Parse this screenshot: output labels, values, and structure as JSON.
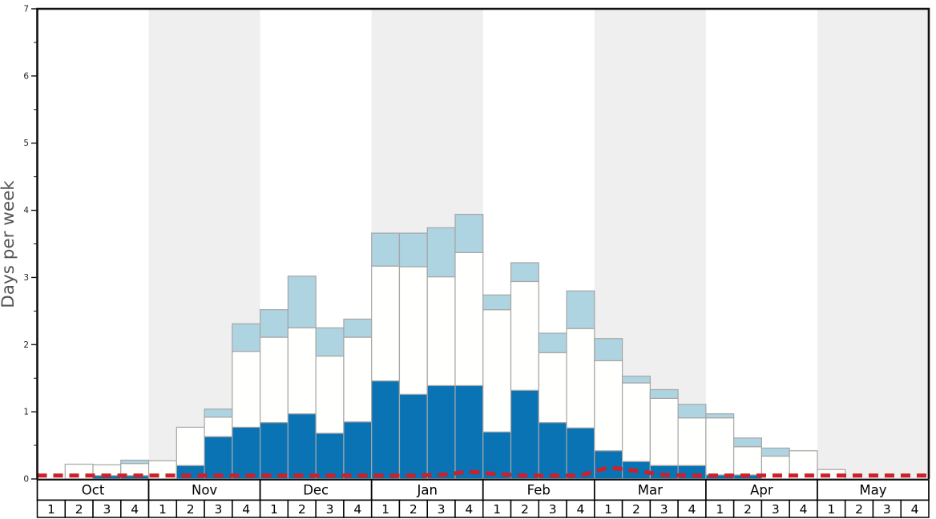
{
  "chart_data": {
    "type": "bar",
    "title": "",
    "ylabel": "Days per week",
    "xlabel": "",
    "ylim": [
      0,
      7
    ],
    "yticks": [
      0,
      1,
      2,
      3,
      4,
      5,
      6,
      7
    ],
    "minor_tick_step": 0.5,
    "grid": false,
    "legend": "none visible",
    "months": [
      "Oct",
      "Nov",
      "Dec",
      "Jan",
      "Feb",
      "Mar",
      "Apr",
      "May"
    ],
    "weeks_per_month": 4,
    "week_labels": [
      "1",
      "2",
      "3",
      "4"
    ],
    "shaded_months": [
      "Nov",
      "Jan",
      "Mar",
      "May"
    ],
    "stacking": "segment heights in days per week, stacked bottom-to-top: dark_blue, white, light_blue",
    "series": [
      {
        "name": "dark_blue_segment",
        "color": "#0a73b4",
        "values": [
          0,
          0,
          0.05,
          0.05,
          0,
          0.2,
          0.63,
          0.77,
          0.84,
          0.97,
          0.68,
          0.85,
          1.46,
          1.26,
          1.39,
          1.39,
          0.7,
          1.32,
          0.84,
          0.76,
          0.42,
          0.26,
          0.2,
          0.2,
          0.06,
          0.06,
          0,
          0,
          0,
          0,
          0,
          0
        ]
      },
      {
        "name": "white_segment",
        "color": "#fffffd",
        "values": [
          0,
          0.22,
          0.16,
          0.18,
          0.27,
          0.57,
          0.29,
          1.13,
          1.27,
          1.28,
          1.15,
          1.26,
          1.71,
          1.9,
          1.62,
          1.98,
          1.82,
          1.62,
          1.04,
          1.48,
          1.34,
          1.17,
          1.0,
          0.71,
          0.85,
          0.42,
          0.34,
          0.42,
          0.14,
          0,
          0,
          0
        ]
      },
      {
        "name": "light_blue_segment",
        "color": "#aed3e1",
        "values": [
          0,
          0,
          0,
          0.05,
          0,
          0,
          0.12,
          0.41,
          0.41,
          0.77,
          0.42,
          0.27,
          0.49,
          0.5,
          0.73,
          0.57,
          0.22,
          0.28,
          0.29,
          0.56,
          0.33,
          0.1,
          0.13,
          0.2,
          0.06,
          0.13,
          0.12,
          0,
          0,
          0,
          0,
          0
        ]
      }
    ],
    "red_dashed_line": {
      "name": "red_dashed_line",
      "color": "#cf1f28",
      "values": [
        0.05,
        0.05,
        0.05,
        0.05,
        0.05,
        0.05,
        0.05,
        0.05,
        0.05,
        0.05,
        0.05,
        0.05,
        0.05,
        0.05,
        0.06,
        0.11,
        0.07,
        0.05,
        0.05,
        0.05,
        0.17,
        0.12,
        0.06,
        0.05,
        0.05,
        0.05,
        0.05,
        0.05,
        0.05,
        0.05,
        0.05,
        0.05
      ]
    }
  },
  "colors": {
    "dark_blue": "#0a73b4",
    "light_blue": "#aed3e1",
    "bar_white": "#fffffd",
    "bar_border": "#a6a6a6",
    "band_gray": "#efefef",
    "frame": "#111111",
    "bottom_edge": "#777777",
    "red_line": "#cf1f28",
    "tick_label": "#222222",
    "axis_label": "#555555",
    "table_border": "#000000",
    "table_text": "#000000"
  }
}
